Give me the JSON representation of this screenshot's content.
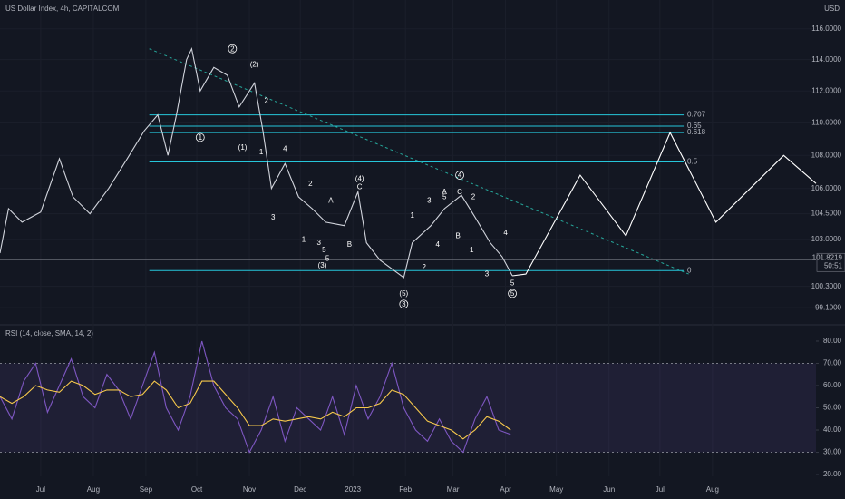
{
  "chart_data": [
    {
      "type": "line",
      "title": "US Dollar Index, 4h, CAPITALCOM",
      "y_label": "USD",
      "log": true,
      "grid": true,
      "ylim": [
        98.3,
        117.9
      ],
      "yticks": [
        {
          "value": 116,
          "label": "116.0000"
        },
        {
          "value": 114,
          "label": "114.0000"
        },
        {
          "value": 112,
          "label": "112.0000"
        },
        {
          "value": 110,
          "label": "110.0000"
        },
        {
          "value": 108,
          "label": "108.0000"
        },
        {
          "value": 106,
          "label": "106.0000"
        },
        {
          "value": 104.5,
          "label": "104.5000"
        },
        {
          "value": 103,
          "label": "103.0000"
        },
        {
          "value": 100.3,
          "label": "100.3000"
        },
        {
          "value": 99.1,
          "label": "99.1000"
        }
      ],
      "xlim": [
        -24,
        457
      ],
      "xticks": [
        {
          "value": 0,
          "label": "Jul"
        },
        {
          "value": 31,
          "label": "Aug"
        },
        {
          "value": 62,
          "label": "Sep"
        },
        {
          "value": 92,
          "label": "Oct"
        },
        {
          "value": 123,
          "label": "Nov"
        },
        {
          "value": 153,
          "label": "Dec"
        },
        {
          "value": 184,
          "label": "2023"
        },
        {
          "value": 215,
          "label": "Feb"
        },
        {
          "value": 243,
          "label": "Mar"
        },
        {
          "value": 274,
          "label": "Apr"
        },
        {
          "value": 304,
          "label": "May"
        },
        {
          "value": 335,
          "label": "Jun"
        },
        {
          "value": 365,
          "label": "Jul"
        },
        {
          "value": 396,
          "label": "Aug"
        }
      ],
      "series": [
        {
          "color": "#d1d4dc",
          "x": [
            -24,
            -19,
            -11,
            0,
            11,
            19,
            29,
            40,
            51,
            61,
            69,
            75,
            80,
            86,
            89,
            94,
            102,
            110,
            117,
            126,
            131,
            136,
            144,
            152,
            160,
            168,
            179,
            187,
            192,
            200,
            214,
            219,
            230,
            238,
            248,
            256,
            265,
            272,
            278
          ],
          "values": [
            102.2,
            104.8,
            104.0,
            104.6,
            107.8,
            105.5,
            104.5,
            106.0,
            107.8,
            109.5,
            110.5,
            108.0,
            110.5,
            114.0,
            114.7,
            112.0,
            113.5,
            113.0,
            111.0,
            112.5,
            109.5,
            106.0,
            107.5,
            105.5,
            104.8,
            104.0,
            103.8,
            105.8,
            102.8,
            101.8,
            100.8,
            102.8,
            103.8,
            104.8,
            105.6,
            104.3,
            102.8,
            102.0,
            100.9
          ]
        },
        {
          "color": "#ffffff",
          "x": [
            278,
            286,
            318,
            345,
            371,
            398,
            438,
            457
          ],
          "values": [
            100.9,
            101.0,
            106.8,
            103.2,
            109.4,
            104.0,
            108.0,
            106.3
          ]
        }
      ],
      "last_price": {
        "value": 101.8219,
        "label": "101.8219"
      },
      "countdown": "50:51",
      "fib_color": "#26c6da",
      "fib_xlim": [
        64,
        379
      ],
      "fib_levels": [
        {
          "label": "0.707",
          "price": 110.5
        },
        {
          "label": "0.65",
          "price": 109.8
        },
        {
          "label": "0.618",
          "price": 109.4
        },
        {
          "label": "0.5",
          "price": 107.6
        },
        {
          "label": "0",
          "price": 101.2
        }
      ],
      "trendline": {
        "color": "#26a69a",
        "x": [
          64,
          382
        ],
        "values": [
          114.7,
          101.0
        ]
      },
      "annotations": [
        {
          "text": "2",
          "x": 113,
          "y": 114.7,
          "circled": true
        },
        {
          "text": "(2)",
          "x": 126,
          "y": 113.7
        },
        {
          "text": "1",
          "x": 94,
          "y": 109.1,
          "circled": true
        },
        {
          "text": "(1)",
          "x": 119,
          "y": 108.5
        },
        {
          "text": "2",
          "x": 133,
          "y": 111.4
        },
        {
          "text": "1",
          "x": 130,
          "y": 108.2
        },
        {
          "text": "4",
          "x": 144,
          "y": 108.4
        },
        {
          "text": "3",
          "x": 137,
          "y": 104.3
        },
        {
          "text": "2",
          "x": 159,
          "y": 106.3
        },
        {
          "text": "A",
          "x": 171,
          "y": 105.3,
          "color": "#ffeb3b"
        },
        {
          "text": "(4)",
          "x": 188,
          "y": 106.6
        },
        {
          "text": "C",
          "x": 188,
          "y": 106.1,
          "color": "#ffeb3b"
        },
        {
          "text": "1",
          "x": 155,
          "y": 103.0
        },
        {
          "text": "3",
          "x": 164,
          "y": 102.8
        },
        {
          "text": "5",
          "x": 167,
          "y": 102.4
        },
        {
          "text": "5",
          "x": 169,
          "y": 101.9
        },
        {
          "text": "(3)",
          "x": 166,
          "y": 101.5
        },
        {
          "text": "B",
          "x": 182,
          "y": 102.7,
          "color": "#ffeb3b"
        },
        {
          "text": "4",
          "x": 247,
          "y": 106.8,
          "circled": true
        },
        {
          "text": "(5)",
          "x": 214,
          "y": 99.9
        },
        {
          "text": "3",
          "x": 214,
          "y": 99.3,
          "circled": true
        },
        {
          "text": "1",
          "x": 219,
          "y": 104.4
        },
        {
          "text": "3",
          "x": 229,
          "y": 105.3
        },
        {
          "text": "A",
          "x": 238,
          "y": 105.8,
          "color": "#ffeb3b"
        },
        {
          "text": "5",
          "x": 238,
          "y": 105.5
        },
        {
          "text": "C",
          "x": 247,
          "y": 105.8,
          "color": "#ffeb3b"
        },
        {
          "text": "2",
          "x": 255,
          "y": 105.5
        },
        {
          "text": "4",
          "x": 234,
          "y": 102.7
        },
        {
          "text": "B",
          "x": 246,
          "y": 103.2,
          "color": "#ffeb3b"
        },
        {
          "text": "2",
          "x": 226,
          "y": 101.4
        },
        {
          "text": "1",
          "x": 254,
          "y": 102.4
        },
        {
          "text": "4",
          "x": 274,
          "y": 103.4
        },
        {
          "text": "3",
          "x": 263,
          "y": 101.0
        },
        {
          "text": "5",
          "x": 278,
          "y": 100.5
        },
        {
          "text": "5",
          "x": 278,
          "y": 99.9,
          "circled": true
        }
      ]
    },
    {
      "type": "line",
      "title": "RSI (14, close, SMA, 14, 2)",
      "ylim": [
        19.2,
        85.7
      ],
      "yticks": [
        {
          "value": 80,
          "label": "80.00"
        },
        {
          "value": 70,
          "label": "70.00"
        },
        {
          "value": 60,
          "label": "60.00"
        },
        {
          "value": 50,
          "label": "50.00"
        },
        {
          "value": 40,
          "label": "40.00"
        },
        {
          "value": 30,
          "label": "30.00"
        },
        {
          "value": 20,
          "label": "20.00"
        }
      ],
      "band": [
        30,
        70
      ],
      "band_color": "#7e57c2",
      "x": [
        -24,
        -17,
        -10,
        -3,
        4,
        11,
        18,
        25,
        32,
        39,
        46,
        53,
        60,
        67,
        74,
        81,
        88,
        95,
        102,
        109,
        116,
        123,
        130,
        137,
        144,
        151,
        158,
        165,
        172,
        179,
        186,
        193,
        200,
        207,
        214,
        221,
        228,
        235,
        242,
        249,
        256,
        263,
        270,
        277
      ],
      "series": [
        {
          "color": "#7e57c2",
          "values": [
            55,
            45,
            62,
            70,
            48,
            60,
            72,
            55,
            50,
            65,
            58,
            45,
            60,
            75,
            50,
            40,
            55,
            80,
            60,
            50,
            45,
            30,
            40,
            55,
            35,
            50,
            45,
            40,
            55,
            38,
            60,
            45,
            55,
            70,
            50,
            40,
            35,
            45,
            35,
            30,
            45,
            55,
            40,
            38
          ]
        },
        {
          "color": "#f7c94b",
          "values": [
            55,
            52,
            55,
            60,
            58,
            57,
            62,
            60,
            56,
            58,
            58,
            55,
            56,
            62,
            58,
            50,
            52,
            62,
            62,
            56,
            50,
            42,
            42,
            45,
            44,
            45,
            46,
            45,
            48,
            46,
            50,
            50,
            52,
            58,
            56,
            50,
            44,
            42,
            40,
            36,
            40,
            46,
            44,
            40
          ]
        }
      ]
    }
  ]
}
